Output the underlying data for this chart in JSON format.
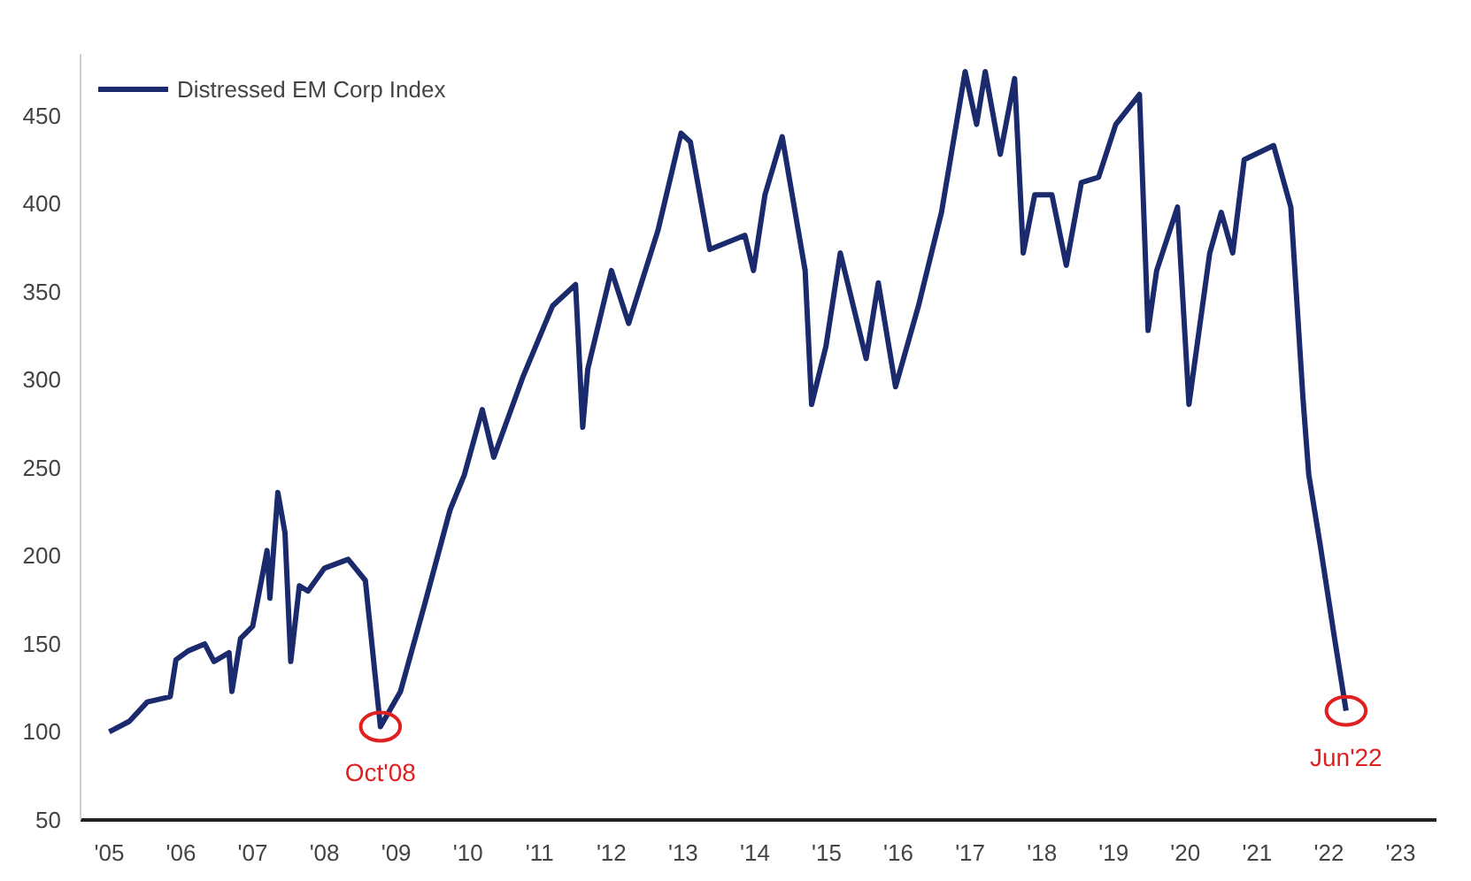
{
  "chart_data": {
    "type": "line",
    "legend": "top left",
    "grid": false,
    "line_style": "solid",
    "marker": "none",
    "x": [
      2005.0,
      2005.28,
      2005.53,
      2005.85,
      2005.93,
      2006.1,
      2006.33,
      2006.46,
      2006.67,
      2006.71,
      2006.83,
      2007.0,
      2007.2,
      2007.24,
      2007.35,
      2007.45,
      2007.53,
      2007.65,
      2007.77,
      2008.0,
      2008.33,
      2008.57,
      2008.78,
      2009.06,
      2009.4,
      2009.75,
      2009.95,
      2010.2,
      2010.36,
      2010.77,
      2011.18,
      2011.5,
      2011.6,
      2011.67,
      2012.0,
      2012.24,
      2012.65,
      2012.97,
      2013.1,
      2013.37,
      2013.86,
      2013.98,
      2014.14,
      2014.38,
      2014.7,
      2014.79,
      2014.99,
      2015.19,
      2015.55,
      2015.72,
      2015.96,
      2016.28,
      2016.6,
      2016.93,
      2017.09,
      2017.21,
      2017.42,
      2017.62,
      2017.74,
      2017.9,
      2018.14,
      2018.34,
      2018.55,
      2018.79,
      2019.03,
      2019.36,
      2019.48,
      2019.6,
      2019.89,
      2020.05,
      2020.34,
      2020.5,
      2020.66,
      2020.82,
      2021.23,
      2021.47,
      2021.64,
      2021.72,
      2021.88,
      2022.08,
      2022.24
    ],
    "series": [
      {
        "name": "Distressed EM Corp Index",
        "color": "#1a2a6c",
        "values": [
          100,
          106,
          117,
          120,
          141,
          146,
          150,
          140,
          145,
          123,
          153,
          160,
          203,
          176,
          236,
          213,
          140,
          183,
          180,
          193,
          198,
          186,
          103,
          123,
          173,
          226,
          246,
          283,
          256,
          302,
          342,
          354,
          273,
          306,
          362,
          332,
          385,
          440,
          435,
          374,
          382,
          362,
          405,
          438,
          362,
          286,
          319,
          372,
          312,
          355,
          296,
          342,
          395,
          475,
          445,
          475,
          428,
          471,
          372,
          405,
          405,
          365,
          412,
          415,
          445,
          462,
          328,
          362,
          398,
          286,
          372,
          395,
          372,
          425,
          433,
          398,
          289,
          246,
          206,
          153,
          112
        ]
      }
    ],
    "xlim": [
      2004.6,
      2023.5
    ],
    "xticks": [
      {
        "value": 2005,
        "label": "'05"
      },
      {
        "value": 2006,
        "label": "'06"
      },
      {
        "value": 2007,
        "label": "'07"
      },
      {
        "value": 2008,
        "label": "'08"
      },
      {
        "value": 2009,
        "label": "'09"
      },
      {
        "value": 2010,
        "label": "'10"
      },
      {
        "value": 2011,
        "label": "'11"
      },
      {
        "value": 2012,
        "label": "'12"
      },
      {
        "value": 2013,
        "label": "'13"
      },
      {
        "value": 2014,
        "label": "'14"
      },
      {
        "value": 2015,
        "label": "'15"
      },
      {
        "value": 2016,
        "label": "'16"
      },
      {
        "value": 2017,
        "label": "'17"
      },
      {
        "value": 2018,
        "label": "'18"
      },
      {
        "value": 2019,
        "label": "'19"
      },
      {
        "value": 2020,
        "label": "'20"
      },
      {
        "value": 2021,
        "label": "'21"
      },
      {
        "value": 2022,
        "label": "'22"
      },
      {
        "value": 2023,
        "label": "'23"
      }
    ],
    "ylim": [
      50,
      485
    ],
    "yticks": [
      50,
      100,
      150,
      200,
      250,
      300,
      350,
      400,
      450
    ],
    "annotations": [
      {
        "text": "Oct'08",
        "x": 2008.78,
        "y": 103
      },
      {
        "text": "Jun'22",
        "x": 2022.24,
        "y": 112
      }
    ]
  }
}
